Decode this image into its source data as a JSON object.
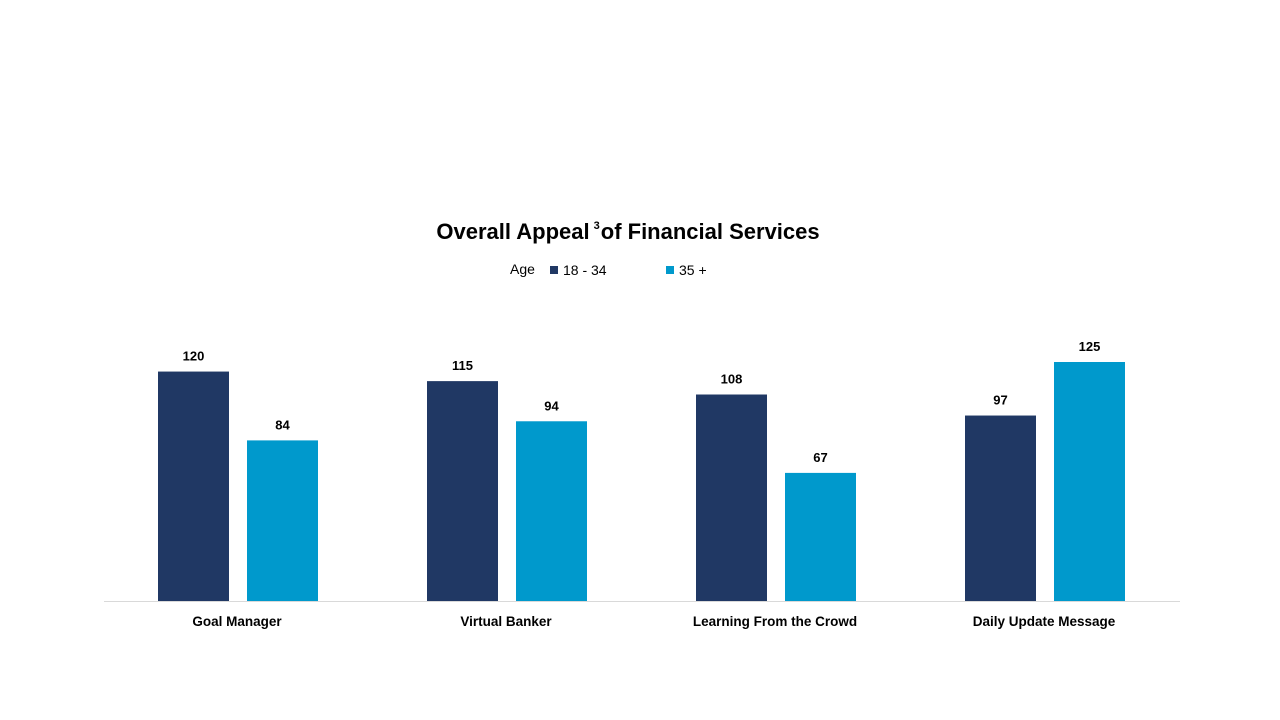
{
  "chart_data": {
    "type": "bar",
    "title_main": "Overall Appeal",
    "title_superscript": "3",
    "title_rest": "of Financial Services",
    "legend_title": "Age",
    "legend_position": "top",
    "grid": false,
    "categories": [
      "Goal Manager",
      "Virtual Banker",
      "Learning From the Crowd",
      "Daily Update Message"
    ],
    "series": [
      {
        "name": "18 - 34",
        "color": "#203864",
        "values": [
          120,
          115,
          108,
          97
        ]
      },
      {
        "name": "35 +",
        "color": "#0099cc",
        "values": [
          84,
          94,
          67,
          125
        ]
      }
    ],
    "ylim": [
      0,
      125
    ],
    "xlabel": "",
    "ylabel": ""
  }
}
